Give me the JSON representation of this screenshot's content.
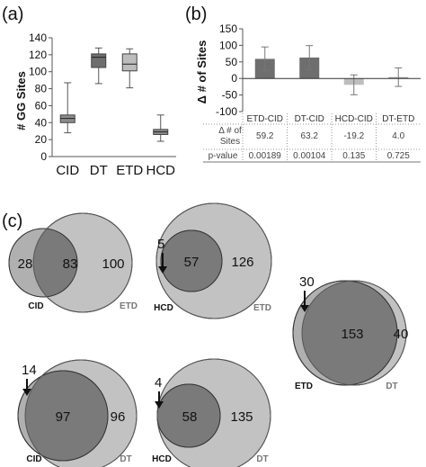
{
  "panels": {
    "a": "(a)",
    "b": "(b)",
    "c": "(c)"
  },
  "chart_data": [
    {
      "type": "box",
      "ylabel": "# GG Sites",
      "ylim": [
        0,
        140
      ],
      "yticks": [
        0,
        20,
        40,
        60,
        80,
        100,
        120,
        140
      ],
      "categories": [
        "CID",
        "DT",
        "ETD",
        "HCD"
      ],
      "boxes": [
        {
          "name": "CID",
          "min": 28,
          "q1": 40,
          "median": 45,
          "q3": 49,
          "max": 87,
          "color": "#8c8c8c"
        },
        {
          "name": "DT",
          "min": 86,
          "q1": 105,
          "median": 117,
          "q3": 121,
          "max": 128,
          "color": "#6e6e6e"
        },
        {
          "name": "ETD",
          "min": 81,
          "q1": 101,
          "median": 109,
          "q3": 121,
          "max": 127,
          "color": "#bdbdbd"
        },
        {
          "name": "HCD",
          "min": 18,
          "q1": 26,
          "median": 29,
          "q3": 32,
          "max": 49,
          "color": "#8c8c8c"
        }
      ]
    },
    {
      "type": "bar",
      "ylabel": "Δ # of Sites",
      "ylim": [
        -100,
        150
      ],
      "yticks": [
        -100,
        -50,
        0,
        50,
        100,
        150
      ],
      "categories": [
        "ETD-CID",
        "DT-CID",
        "HCD-CID",
        "DT-ETD"
      ],
      "values": [
        59.2,
        63.2,
        -19.2,
        4.0
      ],
      "errors": [
        36,
        36,
        30,
        28
      ],
      "colors": [
        "#6e6e6e",
        "#6e6e6e",
        "#bdbdbd",
        "#9a9a9a"
      ],
      "table": {
        "row1_label": "Δ # of Sites",
        "row1_values": [
          "59.2",
          "63.2",
          "-19.2",
          "4.0"
        ],
        "row2_label": "p-value",
        "row2_values": [
          "0.00189",
          "0.00104",
          "0.135",
          "0.725"
        ]
      }
    },
    {
      "type": "venn",
      "diagrams": [
        {
          "left_label": "CID",
          "right_label": "ETD",
          "left_only": "28",
          "overlap": "83",
          "right_only": "100",
          "arrow_label": ""
        },
        {
          "left_label": "HCD",
          "right_label": "ETD",
          "left_only": "",
          "overlap": "57",
          "right_only": "126",
          "arrow_label": "5"
        },
        {
          "left_label": "ETD",
          "right_label": "DT",
          "left_only": "",
          "overlap": "153",
          "right_only": "40",
          "arrow_label": "30"
        },
        {
          "left_label": "CID",
          "right_label": "DT",
          "left_only": "",
          "overlap": "97",
          "right_only": "96",
          "arrow_label": "14"
        },
        {
          "left_label": "HCD",
          "right_label": "DT",
          "left_only": "",
          "overlap": "58",
          "right_only": "135",
          "arrow_label": "4"
        }
      ]
    }
  ]
}
